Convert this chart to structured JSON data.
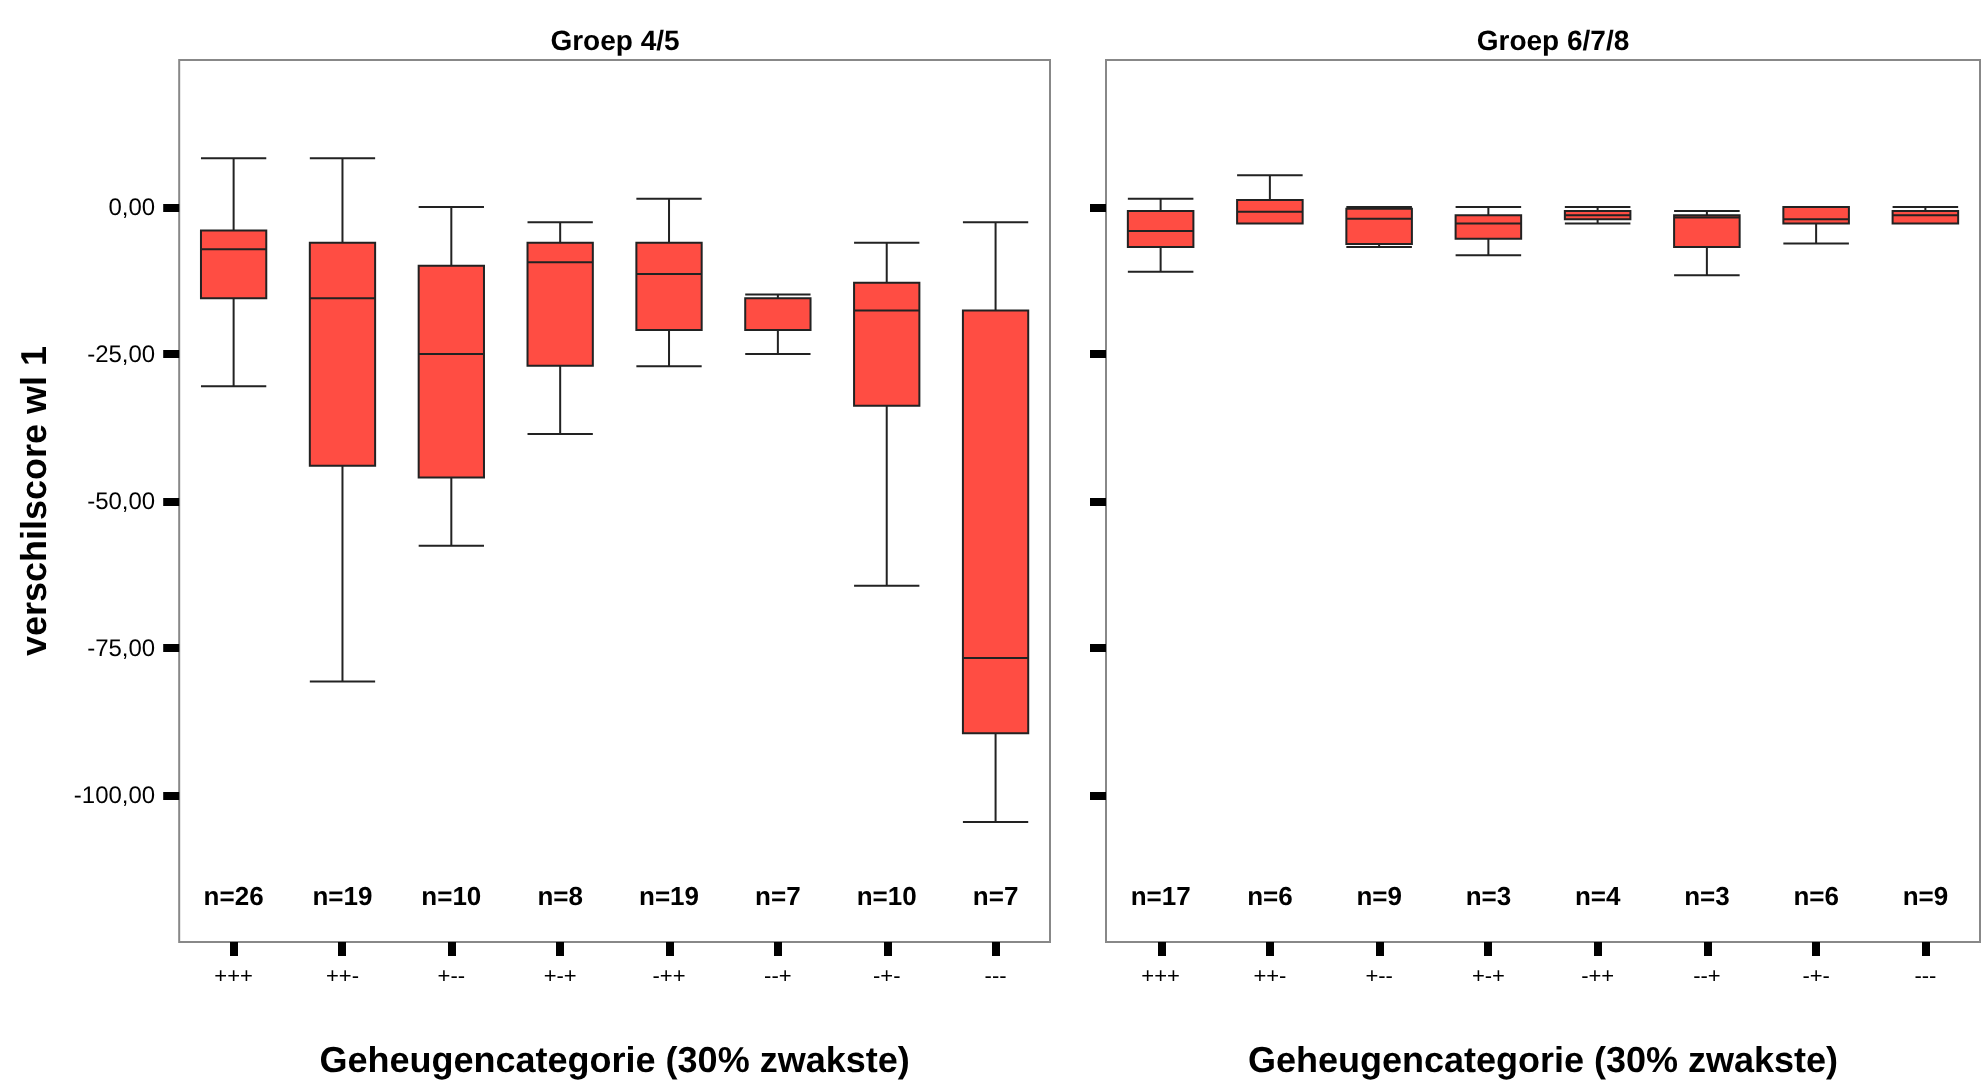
{
  "chart_data": [
    {
      "type": "box",
      "title": "Groep 4/5",
      "xlabel": "Geheugencategorie (30% zwakste)",
      "ylabel": "verschilscore wl 1",
      "categories": [
        "+++",
        "++-",
        "+--",
        "+-+",
        "-++",
        "--+",
        "-+-",
        "---"
      ],
      "series": [
        {
          "color": "#ff4d43",
          "boxes": [
            {
              "low": -30.5,
              "q1": -15.5,
              "median": -7.2,
              "q3": -4.0,
              "high": 8.3
            },
            {
              "low": -80.7,
              "q1": -44,
              "median": -15.5,
              "q3": -6.1,
              "high": 8.3
            },
            {
              "low": -57.6,
              "q1": -46,
              "median": -25,
              "q3": -10,
              "high": 0
            },
            {
              "low": -38.6,
              "q1": -27,
              "median": -9.4,
              "q3": -6.1,
              "high": -2.6
            },
            {
              "low": -27.1,
              "q1": -20.9,
              "median": -11.4,
              "q3": -6.1,
              "high": 1.4
            },
            {
              "low": -25,
              "q1": -20.9,
              "median": -15.5,
              "q3": -15.5,
              "high": -14.9
            },
            {
              "low": -64.4,
              "q1": -33.8,
              "median": -17.6,
              "q3": -12.9,
              "high": -6.1
            },
            {
              "low": -104.6,
              "q1": -89.5,
              "median": -76.7,
              "q3": -17.6,
              "high": -2.6
            }
          ]
        }
      ],
      "ylim": [
        -125,
        25
      ],
      "yticks": [
        {
          "value": 0,
          "label": "0,00"
        },
        {
          "value": -25,
          "label": "-25,00"
        },
        {
          "value": -50,
          "label": "-50,00"
        },
        {
          "value": -75,
          "label": "-75,00"
        },
        {
          "value": -100,
          "label": "-100,00"
        }
      ],
      "grid": false,
      "annotations": [
        "n=26",
        "n=19",
        "n=10",
        "n=8",
        "n=19",
        "n=7",
        "n=10",
        "n=7"
      ]
    },
    {
      "type": "box",
      "title": "Groep 6/7/8",
      "xlabel": "Geheugencategorie (30% zwakste)",
      "categories": [
        "+++",
        "++-",
        "+--",
        "+-+",
        "-++",
        "--+",
        "-+-",
        "---"
      ],
      "series": [
        {
          "color": "#ff4d43",
          "boxes": [
            {
              "low": -11,
              "q1": -6.8,
              "median": -4.1,
              "q3": -0.7,
              "high": 1.4
            },
            {
              "low": -2.8,
              "q1": -2.8,
              "median": -0.8,
              "q3": 1.2,
              "high": 5.4
            },
            {
              "low": -6.8,
              "q1": -6.3,
              "median": -2,
              "q3": -0.3,
              "high": 0
            },
            {
              "low": -8.2,
              "q1": -5.4,
              "median": -2.8,
              "q3": -1.4,
              "high": 0
            },
            {
              "low": -2.8,
              "q1": -2.1,
              "median": -1.4,
              "q3": -0.7,
              "high": 0
            },
            {
              "low": -11.6,
              "q1": -6.8,
              "median": -1.8,
              "q3": -1.4,
              "high": -0.7
            },
            {
              "low": -6.2,
              "q1": -2.8,
              "median": -2.1,
              "q3": 0,
              "high": 0
            },
            {
              "low": -2.8,
              "q1": -2.8,
              "median": -1.4,
              "q3": -0.7,
              "high": 0
            }
          ]
        }
      ],
      "ylim": [
        -125,
        25
      ],
      "yticks": [
        {
          "value": 0,
          "label": null
        },
        {
          "value": -25,
          "label": null
        },
        {
          "value": -50,
          "label": null
        },
        {
          "value": -75,
          "label": null
        },
        {
          "value": -100,
          "label": null
        }
      ],
      "tick_labels": "x",
      "grid": false,
      "annotations": [
        "n=17",
        "n=6",
        "n=9",
        "n=3",
        "n=4",
        "n=3",
        "n=6",
        "n=9"
      ]
    }
  ]
}
